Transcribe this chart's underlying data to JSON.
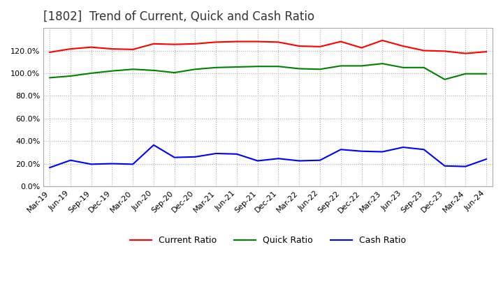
{
  "title": "[1802]  Trend of Current, Quick and Cash Ratio",
  "x_labels": [
    "Mar-19",
    "Jun-19",
    "Sep-19",
    "Dec-19",
    "Mar-20",
    "Jun-20",
    "Sep-20",
    "Dec-20",
    "Mar-21",
    "Jun-21",
    "Sep-21",
    "Dec-21",
    "Mar-22",
    "Jun-22",
    "Sep-22",
    "Dec-22",
    "Mar-23",
    "Jun-23",
    "Sep-23",
    "Dec-23",
    "Mar-24",
    "Jun-24"
  ],
  "current_ratio": [
    118.5,
    121.5,
    123.0,
    121.5,
    121.0,
    126.0,
    125.5,
    126.0,
    127.5,
    128.0,
    128.0,
    127.5,
    124.0,
    123.5,
    128.0,
    122.5,
    129.0,
    124.0,
    120.0,
    119.5,
    117.5,
    119.0
  ],
  "quick_ratio": [
    96.0,
    97.5,
    100.0,
    102.0,
    103.5,
    102.5,
    100.5,
    103.5,
    105.0,
    105.5,
    106.0,
    106.0,
    104.0,
    103.5,
    106.5,
    106.5,
    108.5,
    105.0,
    105.0,
    94.5,
    99.5,
    99.5
  ],
  "cash_ratio": [
    16.5,
    23.0,
    19.5,
    20.0,
    19.5,
    36.5,
    25.5,
    26.0,
    29.0,
    28.5,
    22.5,
    24.5,
    22.5,
    23.0,
    32.5,
    31.0,
    30.5,
    34.5,
    32.5,
    18.0,
    17.5,
    24.0
  ],
  "current_color": "#FF0000",
  "quick_color": "#008000",
  "cash_color": "#0000FF",
  "ylim": [
    0,
    140
  ],
  "yticks": [
    0,
    20,
    40,
    60,
    80,
    100,
    120
  ],
  "background_color": "#FFFFFF",
  "grid_color": "#AAAAAA",
  "title_fontsize": 12,
  "legend_fontsize": 9,
  "tick_fontsize": 8
}
